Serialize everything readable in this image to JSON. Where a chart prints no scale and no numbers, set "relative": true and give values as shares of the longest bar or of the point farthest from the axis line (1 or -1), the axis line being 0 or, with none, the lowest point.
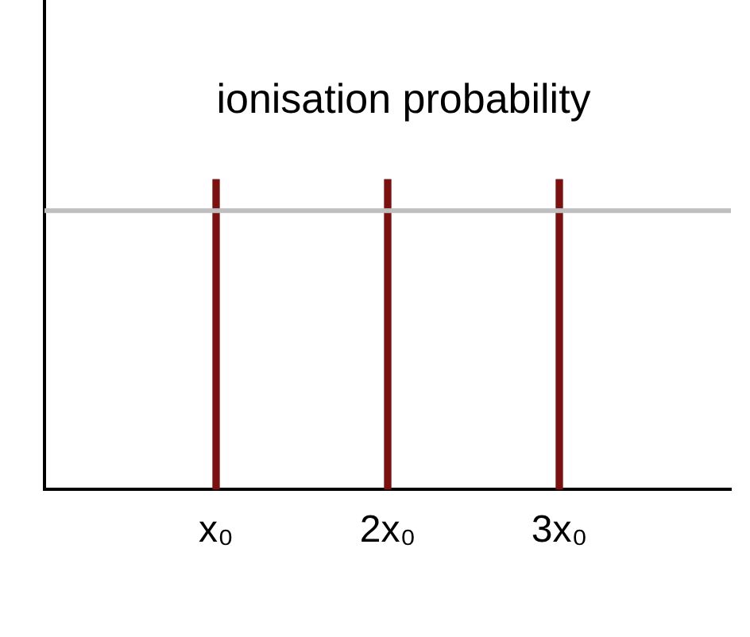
{
  "chart_data": {
    "type": "bar",
    "title": "ionisation probability",
    "relative": true,
    "categories": [
      null,
      "x₀",
      "2x₀",
      "3x₀",
      null
    ],
    "values": [
      null,
      1,
      1,
      1,
      null
    ],
    "color": "#7b1010",
    "ref_lines": [
      {
        "axis": "y",
        "value": 0.9,
        "color": "#bfbfbf"
      }
    ],
    "grid": false,
    "legend": false
  }
}
